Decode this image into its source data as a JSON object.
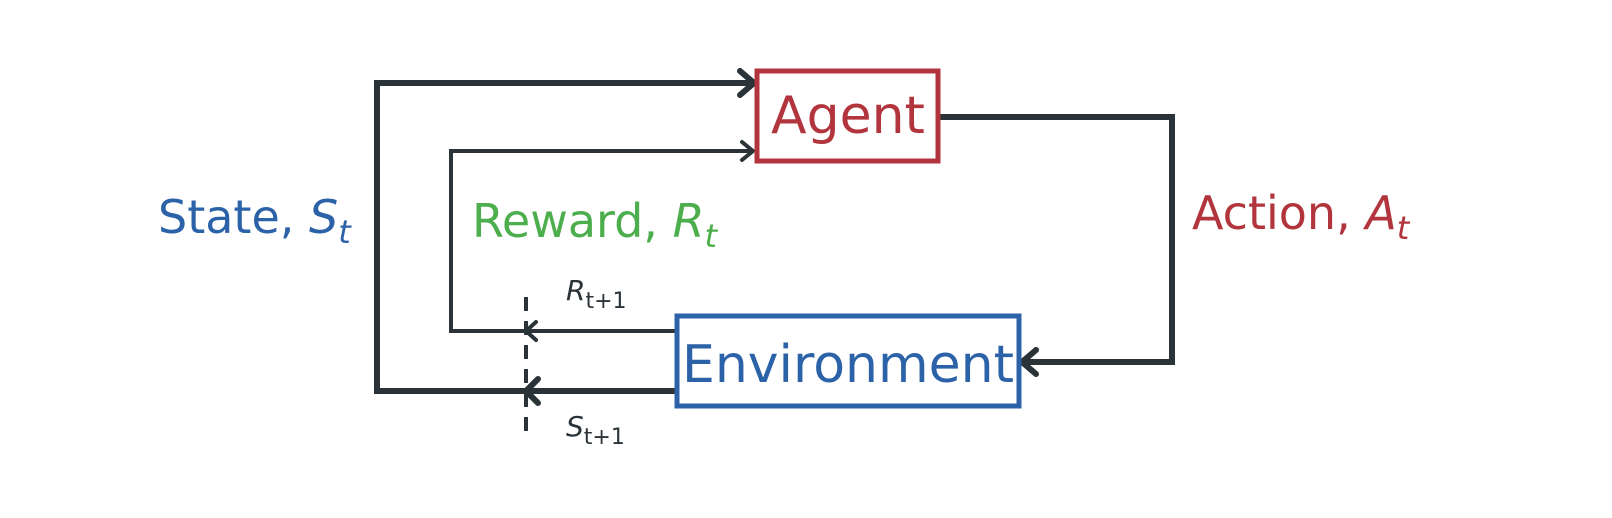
{
  "colors": {
    "agent": "#b2343c",
    "environment": "#2c62a8",
    "reward": "#4cae4c",
    "line": "#2a3338"
  },
  "agent": {
    "label": "Agent"
  },
  "environment": {
    "label": "Environment"
  },
  "state": {
    "text": "State, ",
    "symbol": "S",
    "subscript": "t"
  },
  "reward": {
    "text": "Reward, ",
    "symbol": "R",
    "subscript": "t"
  },
  "action": {
    "text": "Action, ",
    "symbol": "A",
    "subscript": "t"
  },
  "next_reward": {
    "symbol": "R",
    "subscript": "t+1"
  },
  "next_state": {
    "symbol": "S",
    "subscript": "t+1"
  }
}
